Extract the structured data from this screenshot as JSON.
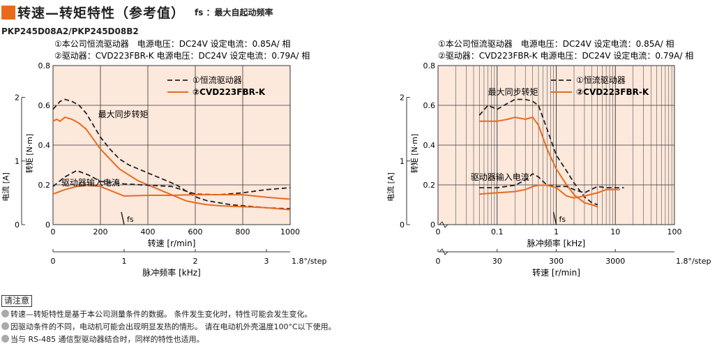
{
  "header": {
    "title": "转速—转矩特性（参考值）",
    "fs_note": "fs ：最大自起动频率",
    "model": "PKP245D08A2/PKP245D08B2"
  },
  "colors": {
    "orange": "#e96a1f",
    "bg": "#fde8dc",
    "title_mark": "#e96a1f"
  },
  "chart_data": [
    {
      "type": "line",
      "title": "",
      "conditions": [
        "①本公司恒流驱动器　电源电压：DC24V 设定电流：0.85A/ 相",
        "②驱动器：CVD223FBR-K 电源电压：DC24V 设定电流：0.79A/ 相"
      ],
      "xlabel": "转速 [r/min]",
      "xlim": [
        0,
        1000
      ],
      "xticks": [
        "0",
        "200",
        "400",
        "600",
        "800",
        "1000"
      ],
      "x2label": "脉冲频率 [kHz]",
      "x2ticks": [
        "0",
        "1",
        "2",
        "3"
      ],
      "x2suffix": "1.8°/step",
      "ylabel": "转矩 [N·m]",
      "ylim": [
        0,
        0.8
      ],
      "yticks": [
        "0",
        "0.2",
        "0.4",
        "0.6",
        "0.8"
      ],
      "y2label": "电流 [A]",
      "y2ticks": [
        "0",
        "1",
        "2"
      ],
      "legend": [
        "①恒流驱动器",
        "②CVD223FBR-K"
      ],
      "annotations": {
        "pullout": "最大同步转矩",
        "current": "驱动器输入电流",
        "fs": "fs"
      },
      "fs_x": 300,
      "series": [
        {
          "name": "①恒流驱动器",
          "kind": "torque",
          "x": [
            0,
            15,
            30,
            50,
            80,
            110,
            140,
            170,
            200,
            240,
            280,
            320,
            360,
            400,
            440,
            480,
            520,
            560,
            600,
            650,
            700,
            750,
            800,
            850,
            900,
            950,
            1000
          ],
          "y": [
            0.58,
            0.6,
            0.62,
            0.63,
            0.62,
            0.6,
            0.56,
            0.5,
            0.44,
            0.38,
            0.33,
            0.3,
            0.28,
            0.26,
            0.24,
            0.22,
            0.2,
            0.17,
            0.14,
            0.12,
            0.11,
            0.1,
            0.095,
            0.09,
            0.085,
            0.082,
            0.08
          ]
        },
        {
          "name": "②CVD223FBR-K",
          "kind": "torque",
          "x": [
            0,
            15,
            30,
            50,
            80,
            110,
            140,
            170,
            200,
            240,
            280,
            320,
            360,
            400,
            440,
            480,
            520,
            560,
            600,
            650,
            700,
            750,
            800,
            850,
            900,
            950,
            1000
          ],
          "y": [
            0.52,
            0.53,
            0.52,
            0.54,
            0.53,
            0.51,
            0.48,
            0.43,
            0.38,
            0.33,
            0.28,
            0.25,
            0.22,
            0.2,
            0.18,
            0.16,
            0.14,
            0.12,
            0.11,
            0.1,
            0.095,
            0.092,
            0.09,
            0.088,
            0.085,
            0.08,
            0.075
          ]
        },
        {
          "name": "①恒流驱动器",
          "kind": "current",
          "x": [
            0,
            50,
            100,
            150,
            200,
            300,
            400,
            500,
            600,
            700,
            800,
            900,
            1000
          ],
          "y": [
            0.6,
            0.75,
            0.85,
            0.78,
            0.68,
            0.64,
            0.62,
            0.6,
            0.48,
            0.47,
            0.5,
            0.55,
            0.58
          ]
        },
        {
          "name": "②CVD223FBR-K",
          "kind": "current",
          "x": [
            0,
            50,
            100,
            150,
            200,
            300,
            400,
            500,
            600,
            700,
            800,
            900,
            1000
          ],
          "y": [
            0.48,
            0.55,
            0.6,
            0.62,
            0.6,
            0.45,
            0.46,
            0.46,
            0.47,
            0.47,
            0.47,
            0.43,
            0.4
          ]
        }
      ]
    },
    {
      "type": "line",
      "title": "",
      "scale": "log",
      "conditions": [
        "①本公司恒流驱动器　电源电压：DC24V 设定电流：0.85A/ 相",
        "②驱动器：CVD223FBR-K 电源电压：DC24V 设定电流：0.79A/ 相"
      ],
      "xlabel": "脉冲频率 [kHz]",
      "xlim": [
        0.01,
        100
      ],
      "xticks": [
        "0",
        "0.1",
        "1",
        "10",
        "100"
      ],
      "x2label": "转速 [r/min]",
      "x2ticks": [
        "0",
        "30",
        "300",
        "3000"
      ],
      "x2suffix": "1.8°/step",
      "ylabel": "转矩 [N·m]",
      "ylim": [
        0,
        0.8
      ],
      "yticks": [
        "0",
        "0.2",
        "0.4",
        "0.6",
        "0.8"
      ],
      "y2label": "电流 [A]",
      "y2ticks": [
        "0",
        "1",
        "2"
      ],
      "legend": [
        "①恒流驱动器",
        "②CVD223FBR-K"
      ],
      "annotations": {
        "pullout": "最大同步转矩",
        "current": "驱动器输入电流",
        "fs": "fs"
      },
      "fs_x": 1,
      "series": [
        {
          "name": "①恒流驱动器",
          "kind": "torque",
          "x": [
            0.05,
            0.07,
            0.1,
            0.15,
            0.2,
            0.3,
            0.4,
            0.5,
            0.7,
            1,
            1.5,
            2,
            3,
            4,
            5
          ],
          "y": [
            0.55,
            0.6,
            0.58,
            0.61,
            0.63,
            0.63,
            0.62,
            0.6,
            0.48,
            0.35,
            0.27,
            0.21,
            0.14,
            0.11,
            0.1
          ]
        },
        {
          "name": "②CVD223FBR-K",
          "kind": "torque",
          "x": [
            0.05,
            0.07,
            0.1,
            0.15,
            0.2,
            0.3,
            0.4,
            0.5,
            0.7,
            1,
            1.5,
            2,
            3,
            4,
            5
          ],
          "y": [
            0.52,
            0.52,
            0.52,
            0.53,
            0.54,
            0.53,
            0.54,
            0.5,
            0.38,
            0.28,
            0.2,
            0.15,
            0.11,
            0.1,
            0.09
          ]
        },
        {
          "name": "①恒流驱动器",
          "kind": "current",
          "x": [
            0.05,
            0.1,
            0.2,
            0.3,
            0.4,
            0.5,
            0.7,
            1,
            1.5,
            2,
            3,
            5,
            7,
            10,
            14
          ],
          "y": [
            0.58,
            0.58,
            0.62,
            0.7,
            0.8,
            0.75,
            0.62,
            0.6,
            0.6,
            0.55,
            0.5,
            0.6,
            0.58,
            0.58,
            0.58
          ]
        },
        {
          "name": "②CVD223FBR-K",
          "kind": "current",
          "x": [
            0.05,
            0.1,
            0.2,
            0.3,
            0.4,
            0.5,
            0.7,
            1,
            1.5,
            2,
            3,
            5,
            7,
            10,
            12
          ],
          "y": [
            0.48,
            0.5,
            0.52,
            0.55,
            0.6,
            0.62,
            0.62,
            0.58,
            0.45,
            0.42,
            0.45,
            0.5,
            0.55,
            0.55,
            0.55
          ]
        }
      ]
    }
  ],
  "notes": {
    "head": "请注意",
    "lines": [
      "转速—转矩特性是基于本公司测量条件的数据。 条件发生变化时，特性可能会发生变化。",
      "因驱动条件的不同，电动机可能会出现明显发热的情形。 请在电动机外壳温度100°C以下使用。",
      "当与 RS-485 通信型驱动器结合时，同样的特性也适用。"
    ]
  }
}
